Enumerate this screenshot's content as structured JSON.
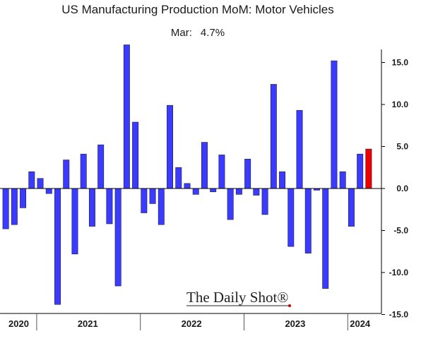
{
  "chart_data": {
    "type": "bar",
    "title": "US Manufacturing Production MoM: Motor Vehicles",
    "subtitle_label": "Mar:",
    "subtitle_value": "4.7%",
    "xlabel": "",
    "ylabel": "",
    "ylim": [
      -15,
      17
    ],
    "y_ticks": [
      "15.0",
      "10.0",
      "5.0",
      "0.0",
      "-5.0",
      "-10.0",
      "-15.0"
    ],
    "y_tick_values": [
      15,
      10,
      5,
      0,
      -5,
      -10,
      -15
    ],
    "year_labels": [
      "2020",
      "2021",
      "2022",
      "2023",
      "2024"
    ],
    "year_month_counts": [
      4,
      12,
      12,
      12,
      3
    ],
    "colors": {
      "bar": "#3b3bff",
      "highlight": "#ee0000"
    },
    "series": [
      {
        "values": [
          -4.8,
          -4.3,
          -2.3,
          2.0,
          1.2,
          -0.6,
          -13.8,
          3.4,
          -7.8,
          4.1,
          -4.5,
          5.2,
          -4.2,
          -11.6,
          17.1,
          7.9,
          -2.9,
          -1.8,
          -4.3,
          9.9,
          2.5,
          0.6,
          -0.7,
          5.5,
          -0.4,
          4.0,
          -3.7,
          -0.7,
          3.5,
          -0.8,
          -3.1,
          12.4,
          2.0,
          -6.9,
          9.3,
          -7.7,
          -0.2,
          -11.9,
          15.2,
          2.0,
          -4.5,
          4.1,
          4.7
        ],
        "highlight_last": true
      }
    ],
    "grid": false,
    "legend": "none"
  },
  "watermark": "The Daily Shot®"
}
